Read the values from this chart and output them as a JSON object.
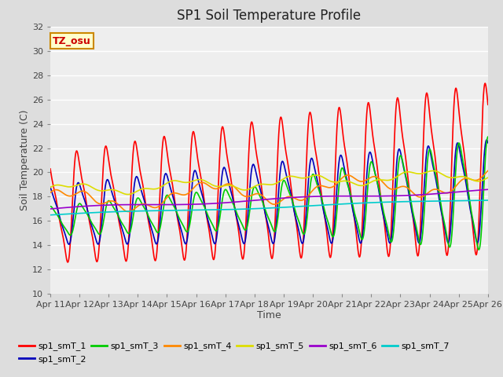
{
  "title": "SP1 Soil Temperature Profile",
  "xlabel": "Time",
  "ylabel": "Soil Temperature (C)",
  "ylim": [
    10,
    32
  ],
  "x_tick_labels": [
    "Apr 11",
    "Apr 12",
    "Apr 13",
    "Apr 14",
    "Apr 15",
    "Apr 16",
    "Apr 17",
    "Apr 18",
    "Apr 19",
    "Apr 20",
    "Apr 21",
    "Apr 22",
    "Apr 23",
    "Apr 24",
    "Apr 25",
    "Apr 26"
  ],
  "series_colors": {
    "sp1_smT_1": "#FF0000",
    "sp1_smT_2": "#0000BB",
    "sp1_smT_3": "#00CC00",
    "sp1_smT_4": "#FF8800",
    "sp1_smT_5": "#DDDD00",
    "sp1_smT_6": "#9900CC",
    "sp1_smT_7": "#00CCCC"
  },
  "series_names": [
    "sp1_smT_1",
    "sp1_smT_2",
    "sp1_smT_3",
    "sp1_smT_4",
    "sp1_smT_5",
    "sp1_smT_6",
    "sp1_smT_7"
  ],
  "tz_label": "TZ_osu",
  "tz_bg_color": "#FFFFCC",
  "tz_border_color": "#CC8800",
  "tz_text_color": "#CC0000",
  "bg_color": "#DDDDDD",
  "plot_bg_color": "#EEEEEE",
  "grid_color": "#FFFFFF",
  "title_fontsize": 12,
  "axis_label_fontsize": 9,
  "tick_label_fontsize": 8,
  "legend_fontsize": 8
}
